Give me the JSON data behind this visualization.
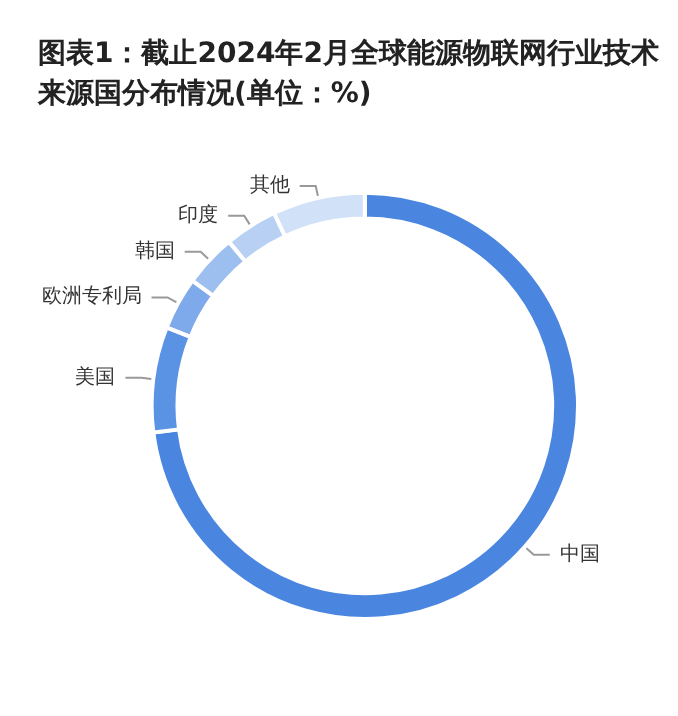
{
  "chart_data": {
    "type": "donut",
    "title": "图表1：截止2024年2月全球能源物联网行业技术来源国分布情况(单位：%)",
    "categories": [
      "中国",
      "美国",
      "欧洲专利局",
      "韩国",
      "印度",
      "其他"
    ],
    "values": [
      73,
      8,
      4,
      4,
      4,
      7
    ],
    "colors": [
      "#4a86e0",
      "#5a92e4",
      "#7ea9ea",
      "#9dbff0",
      "#b7d0f4",
      "#d0e1f8"
    ],
    "legend": false
  }
}
